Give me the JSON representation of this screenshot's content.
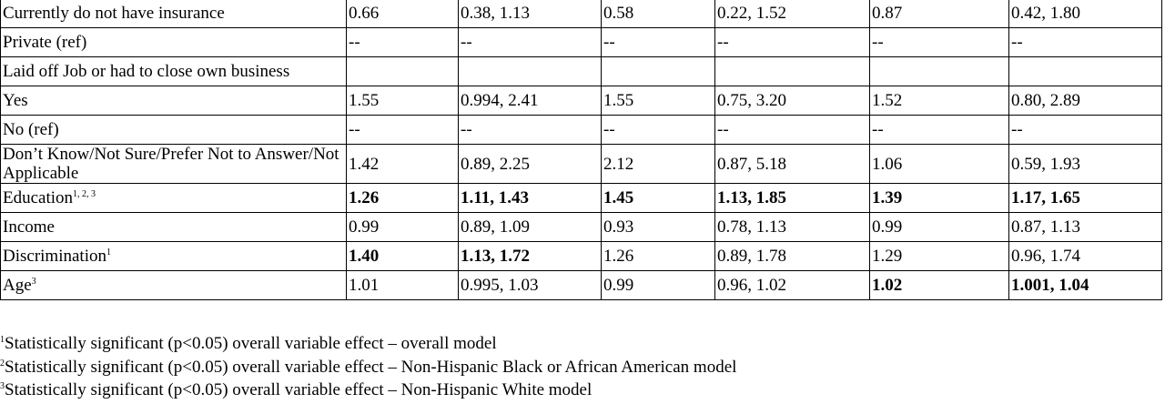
{
  "table": {
    "rows": [
      {
        "label": "Currently do not have insurance",
        "cells": [
          "0.66",
          "0.38, 1.13",
          "0.58",
          "0.22, 1.52",
          "0.87",
          "0.42, 1.80"
        ]
      },
      {
        "label": "Private (ref)",
        "cells": [
          "--",
          "--",
          "--",
          "--",
          "--",
          "--"
        ]
      },
      {
        "label": "Laid off Job or had to close own business",
        "cells": null
      },
      {
        "label": "Yes",
        "cells": [
          "1.55",
          "0.994, 2.41",
          "1.55",
          "0.75, 3.20",
          "1.52",
          "0.80, 2.89"
        ]
      },
      {
        "label": "No (ref)",
        "cells": [
          "--",
          "--",
          "--",
          "--",
          "--",
          "--"
        ]
      },
      {
        "label": "Don’t Know/Not Sure/Prefer Not to Answer/Not Applicable",
        "cells": [
          "1.42",
          "0.89, 2.25",
          "2.12",
          "0.87, 5.18",
          "1.06",
          "0.59, 1.93"
        ]
      },
      {
        "label": "Education",
        "sup": "1, 2, 3",
        "cells": [
          "1.26",
          "1.11, 1.43",
          "1.45",
          "1.13, 1.85",
          "1.39",
          "1.17, 1.65"
        ],
        "bold": [
          0,
          1,
          2,
          3,
          4,
          5
        ]
      },
      {
        "label": "Income",
        "cells": [
          "0.99",
          "0.89, 1.09",
          "0.93",
          "0.78, 1.13",
          "0.99",
          "0.87, 1.13"
        ]
      },
      {
        "label": "Discrimination",
        "sup": "1",
        "cells": [
          "1.40",
          "1.13, 1.72",
          "1.26",
          "0.89, 1.78",
          "1.29",
          "0.96, 1.74"
        ],
        "bold": [
          0,
          1
        ]
      },
      {
        "label": "Age",
        "sup": "3",
        "cells": [
          "1.01",
          "0.995, 1.03",
          "0.99",
          "0.96, 1.02",
          "1.02",
          "1.001, 1.04"
        ],
        "bold": [
          4,
          5
        ]
      }
    ]
  },
  "footnotes": [
    {
      "mark": "1",
      "text": "Statistically significant (p<0.05) overall variable effect – overall model"
    },
    {
      "mark": "2",
      "text": "Statistically significant (p<0.05) overall variable effect – Non-Hispanic Black or African American model"
    },
    {
      "mark": "3",
      "text": "Statistically significant (p<0.05) overall variable effect – Non-Hispanic White model"
    }
  ]
}
